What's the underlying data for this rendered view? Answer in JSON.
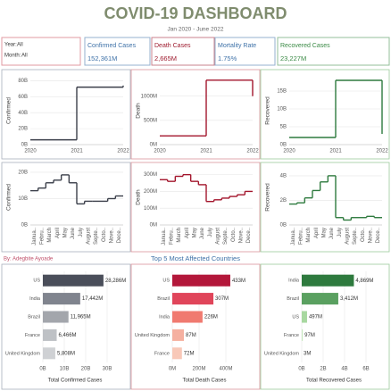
{
  "header": {
    "title": "COVID-19 DASHBOARD",
    "subtitle": "Jan 2020 - June 2022",
    "credit": "By: Adegbite Ayoade",
    "section_title": "Top 5 Most Affected Countries"
  },
  "filters": [
    {
      "label": "Year:",
      "value": "All"
    },
    {
      "label": "Month:",
      "value": "All"
    }
  ],
  "kpis": [
    {
      "label": "Confirmed Cases",
      "value": "152,361M",
      "color": "#3f72a8"
    },
    {
      "label": "Death Cases",
      "value": "2,665M",
      "color": "#9e1b2e"
    },
    {
      "label": "Mortality Rate",
      "value": "1.75%",
      "color": "#3f72a8"
    },
    {
      "label": "Recovered Cases",
      "value": "23,227M",
      "color": "#3a8a45"
    }
  ],
  "chart_data": [
    {
      "type": "line",
      "step": true,
      "ylabel": "Confirmed",
      "color": "#3b3f4a",
      "categories": [
        "2020",
        "2021",
        "2022"
      ],
      "values": [
        6,
        72,
        74
      ],
      "ylim": [
        0,
        85
      ],
      "yticks": [
        {
          "value": 0,
          "label": "0B"
        },
        {
          "value": 20,
          "label": "20B"
        },
        {
          "value": 40,
          "label": "40B"
        },
        {
          "value": 60,
          "label": "60B"
        },
        {
          "value": 80,
          "label": "80B"
        }
      ],
      "grid": true
    },
    {
      "type": "line",
      "step": true,
      "ylabel": "Death",
      "color": "#a3152c",
      "categories": [
        "2020",
        "2021",
        "2022"
      ],
      "values": [
        180,
        1330,
        1000
      ],
      "ylim": [
        0,
        1400
      ],
      "yticks": [
        {
          "value": 0,
          "label": "0M"
        },
        {
          "value": 500,
          "label": "500M"
        },
        {
          "value": 1000,
          "label": "1000M"
        }
      ],
      "grid": true
    },
    {
      "type": "line",
      "step": true,
      "ylabel": "Recovered",
      "color": "#2e7a3e",
      "categories": [
        "2020",
        "2021",
        "2022"
      ],
      "values": [
        2,
        18,
        3
      ],
      "ylim": [
        0,
        19
      ],
      "yticks": [
        {
          "value": 0,
          "label": "0B"
        },
        {
          "value": 5,
          "label": "5B"
        },
        {
          "value": 10,
          "label": "10B"
        },
        {
          "value": 15,
          "label": "15B"
        }
      ],
      "grid": true
    },
    {
      "type": "line",
      "step": true,
      "ylabel": "Confirmed",
      "color": "#3b3f4a",
      "categories": [
        "Janua..",
        "Febru..",
        "March",
        "April",
        "May",
        "June",
        "July",
        "August",
        "Septe..",
        "Octo..",
        "Nove..",
        "Dece.."
      ],
      "values": [
        13,
        14,
        16,
        17,
        19,
        16,
        8,
        9,
        9,
        9,
        10,
        11
      ],
      "ylim": [
        0,
        21
      ],
      "yticks": [
        {
          "value": 0,
          "label": "0B"
        },
        {
          "value": 10,
          "label": "10B"
        },
        {
          "value": 20,
          "label": "20B"
        }
      ],
      "grid": true
    },
    {
      "type": "line",
      "step": true,
      "ylabel": "Death",
      "color": "#a3152c",
      "categories": [
        "Janua..",
        "Febru..",
        "March",
        "April",
        "May",
        "June",
        "July",
        "August",
        "Septe..",
        "Octo..",
        "Nove..",
        "Dece.."
      ],
      "values": [
        270,
        260,
        290,
        300,
        260,
        240,
        140,
        150,
        160,
        170,
        180,
        200
      ],
      "ylim": [
        0,
        330
      ],
      "yticks": [
        {
          "value": 0,
          "label": "0M"
        },
        {
          "value": 100,
          "label": "100M"
        },
        {
          "value": 200,
          "label": "200M"
        },
        {
          "value": 300,
          "label": "300M"
        }
      ],
      "grid": true
    },
    {
      "type": "line",
      "step": true,
      "ylabel": "Recovered",
      "color": "#2e7a3e",
      "categories": [
        "Janua..",
        "Febru..",
        "March",
        "April",
        "May",
        "June",
        "July",
        "August",
        "Septe..",
        "Octo..",
        "Nove..",
        "Dece.."
      ],
      "values": [
        1.7,
        1.8,
        2.2,
        2.8,
        3.5,
        4.0,
        0.6,
        0.4,
        0.6,
        0.6,
        0.7,
        0.6
      ],
      "ylim": [
        0,
        4.5
      ],
      "yticks": [
        {
          "value": 0,
          "label": "0B"
        },
        {
          "value": 2,
          "label": "2B"
        },
        {
          "value": 4,
          "label": "4B"
        }
      ],
      "grid": true
    },
    {
      "type": "hbar",
      "xlabel": "Total Confirmed Cases",
      "categories": [
        "US",
        "India",
        "Brazil",
        "France",
        "United Kingdom"
      ],
      "values": [
        28.286,
        17.442,
        11.965,
        6.466,
        5.808
      ],
      "value_labels": [
        "28,286M",
        "17,442M",
        "11,965M",
        "6,466M",
        "5,808M"
      ],
      "colors": [
        "#4a4e5a",
        "#80848e",
        "#a3a6ac",
        "#bec1c5",
        "#cfd1d4"
      ],
      "xlim": [
        0,
        30
      ],
      "xticks": [
        {
          "value": 0,
          "label": "0B"
        },
        {
          "value": 10,
          "label": "10B"
        },
        {
          "value": 20,
          "label": "20B"
        },
        {
          "value": 30,
          "label": "30B"
        }
      ],
      "grid": true
    },
    {
      "type": "hbar",
      "xlabel": "Total Death Cases",
      "categories": [
        "US",
        "Brazil",
        "India",
        "United Kingdom",
        "France"
      ],
      "values": [
        433,
        307,
        226,
        87,
        72
      ],
      "value_labels": [
        "433M",
        "307M",
        "226M",
        "87M",
        "72M"
      ],
      "colors": [
        "#b3173a",
        "#e0455a",
        "#f07a70",
        "#f5b0a0",
        "#f8c8b8"
      ],
      "xlim": [
        0,
        480
      ],
      "xticks": [
        {
          "value": 0,
          "label": "0M"
        },
        {
          "value": 200,
          "label": "200M"
        },
        {
          "value": 400,
          "label": "400M"
        }
      ],
      "grid": true
    },
    {
      "type": "hbar",
      "xlabel": "Total Recovered Cases",
      "categories": [
        "India",
        "Brazil",
        "US",
        "France",
        "United Kingdom"
      ],
      "values": [
        4.869,
        3.412,
        0.497,
        0.097,
        0.003
      ],
      "value_labels": [
        "4,869M",
        "3,412M",
        "497M",
        "97M",
        "3M"
      ],
      "colors": [
        "#2e7a3e",
        "#5aa060",
        "#a8d8a0",
        "#c8e8c0",
        "#e0f0dc"
      ],
      "xlim": [
        0,
        6
      ],
      "xticks": [
        {
          "value": 0,
          "label": "0B"
        },
        {
          "value": 2,
          "label": "2B"
        },
        {
          "value": 4,
          "label": "4B"
        },
        {
          "value": 6,
          "label": "6B"
        }
      ],
      "grid": true
    }
  ]
}
